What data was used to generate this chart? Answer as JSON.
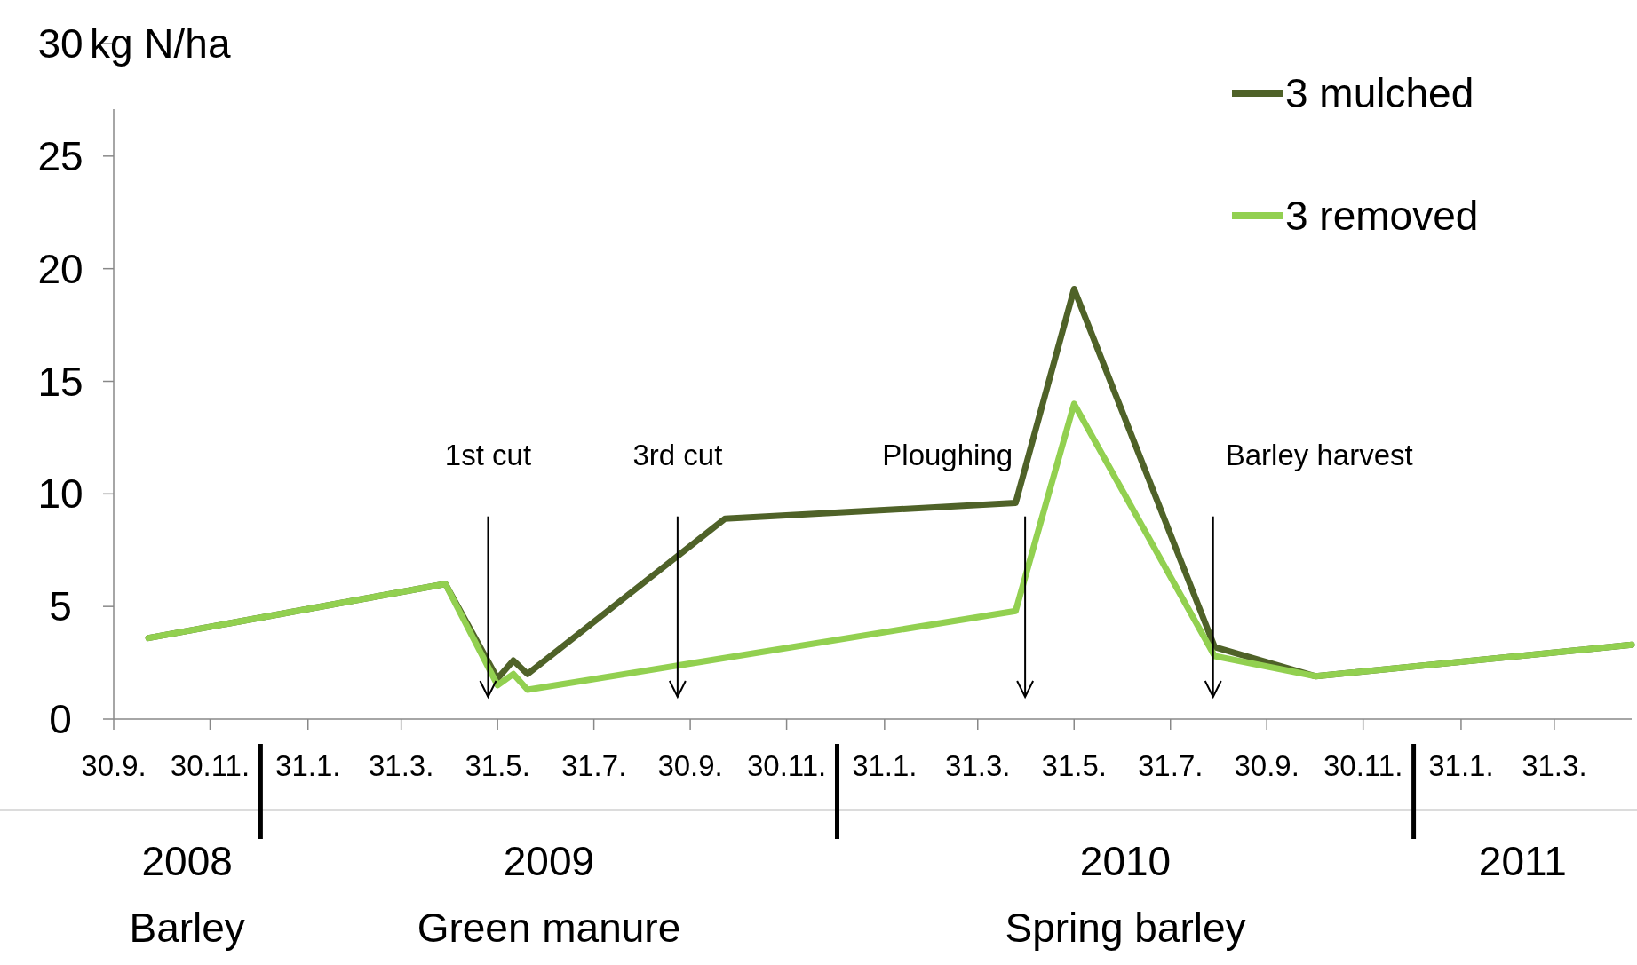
{
  "chart_data": {
    "type": "line",
    "ylabel": "kg N/ha",
    "xlim": [
      "2008-09-30",
      "2011-05-19"
    ],
    "xticks": [
      {
        "value": "2008-09-30",
        "label": "30.9."
      },
      {
        "value": "2008-11-30",
        "label": "30.11."
      },
      {
        "value": "2009-01-31",
        "label": "31.1."
      },
      {
        "value": "2009-03-31",
        "label": "31.3."
      },
      {
        "value": "2009-05-31",
        "label": "31.5."
      },
      {
        "value": "2009-07-31",
        "label": "31.7."
      },
      {
        "value": "2009-09-30",
        "label": "30.9."
      },
      {
        "value": "2009-11-30",
        "label": "30.11."
      },
      {
        "value": "2010-01-31",
        "label": "31.1."
      },
      {
        "value": "2010-03-31",
        "label": "31.3."
      },
      {
        "value": "2010-05-31",
        "label": "31.5."
      },
      {
        "value": "2010-07-31",
        "label": "31.7."
      },
      {
        "value": "2010-09-30",
        "label": "30.9."
      },
      {
        "value": "2010-11-30",
        "label": "30.11."
      },
      {
        "value": "2011-01-31",
        "label": "31.1."
      },
      {
        "value": "2011-03-31",
        "label": "31.3."
      }
    ],
    "ylim": [
      0,
      30
    ],
    "yticks": [
      0,
      5,
      10,
      15,
      20,
      25,
      30
    ],
    "grid": false,
    "legend": "top right",
    "marker": "none",
    "line_style": "solid",
    "series": [
      {
        "name": "3 mulched",
        "color": "#4f6228",
        "x": [
          "2008-10-22",
          "2009-04-28",
          "2009-05-31",
          "2009-06-10",
          "2009-06-19",
          "2009-10-22",
          "2010-04-24",
          "2010-05-31",
          "2010-08-28",
          "2010-10-31",
          "2011-05-19"
        ],
        "values": [
          3.6,
          6.0,
          1.8,
          2.6,
          2.0,
          8.9,
          9.6,
          19.1,
          3.2,
          1.9,
          3.3
        ]
      },
      {
        "name": "3 removed",
        "color": "#92d050",
        "x": [
          "2008-10-22",
          "2009-04-28",
          "2009-05-31",
          "2009-06-10",
          "2009-06-19",
          "2010-04-24",
          "2010-05-31",
          "2010-08-28",
          "2010-10-31",
          "2011-05-19"
        ],
        "values": [
          3.6,
          6.0,
          1.5,
          2.0,
          1.3,
          4.8,
          14.0,
          2.8,
          1.9,
          3.3
        ]
      }
    ],
    "ref_lines": [
      {
        "axis": "x",
        "value": "2009-05-25",
        "label": "1st cut"
      },
      {
        "axis": "x",
        "value": "2009-09-22",
        "label": "3rd cut"
      },
      {
        "axis": "x",
        "value": "2010-04-30",
        "label": "Ploughing"
      },
      {
        "axis": "x",
        "value": "2010-08-27",
        "label": "Barley harvest"
      }
    ],
    "annotations": [
      "2008",
      "2009",
      "2010",
      "2011",
      "Barley",
      "Green manure",
      "Spring barley"
    ]
  }
}
